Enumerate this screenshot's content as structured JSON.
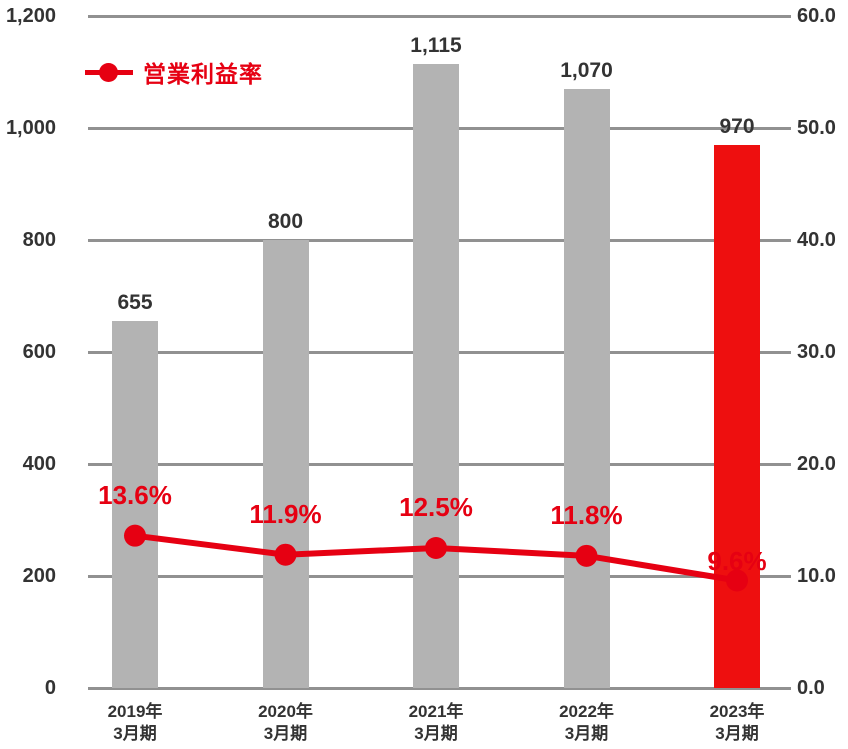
{
  "legend": {
    "label": "営業利益率"
  },
  "chart_data": {
    "type": "bar+line",
    "title": "",
    "categories": [
      {
        "line1": "2019年",
        "line2": "3月期"
      },
      {
        "line1": "2020年",
        "line2": "3月期"
      },
      {
        "line1": "2021年",
        "line2": "3月期"
      },
      {
        "line1": "2022年",
        "line2": "3月期"
      },
      {
        "line1": "2023年",
        "line2": "3月期"
      }
    ],
    "bars": {
      "values": [
        655,
        800,
        1115,
        1070,
        970
      ],
      "labels": [
        "655",
        "800",
        "1,115",
        "1,070",
        "970"
      ],
      "highlight_index": 4
    },
    "line": {
      "name": "営業利益率",
      "values": [
        13.6,
        11.9,
        12.5,
        11.8,
        9.6
      ],
      "labels": [
        "13.6%",
        "11.9%",
        "12.5%",
        "11.8%",
        "9.6%"
      ]
    },
    "left_axis": {
      "min": 0,
      "max": 1200,
      "ticks": [
        "1,200",
        "1,000",
        "800",
        "600",
        "400",
        "200",
        "0"
      ]
    },
    "right_axis": {
      "min": 0,
      "max": 60,
      "ticks": [
        "60.0",
        "50.0",
        "40.0",
        "30.0",
        "20.0",
        "10.0",
        "0.0"
      ]
    },
    "legend_position": "top-left",
    "grid": true,
    "colors": {
      "bar_gray": "#b3b3b3",
      "bar_red": "#ee0f0f",
      "line_red": "#e60012",
      "grid_gray": "#919191",
      "tick_text": "#333333"
    }
  }
}
